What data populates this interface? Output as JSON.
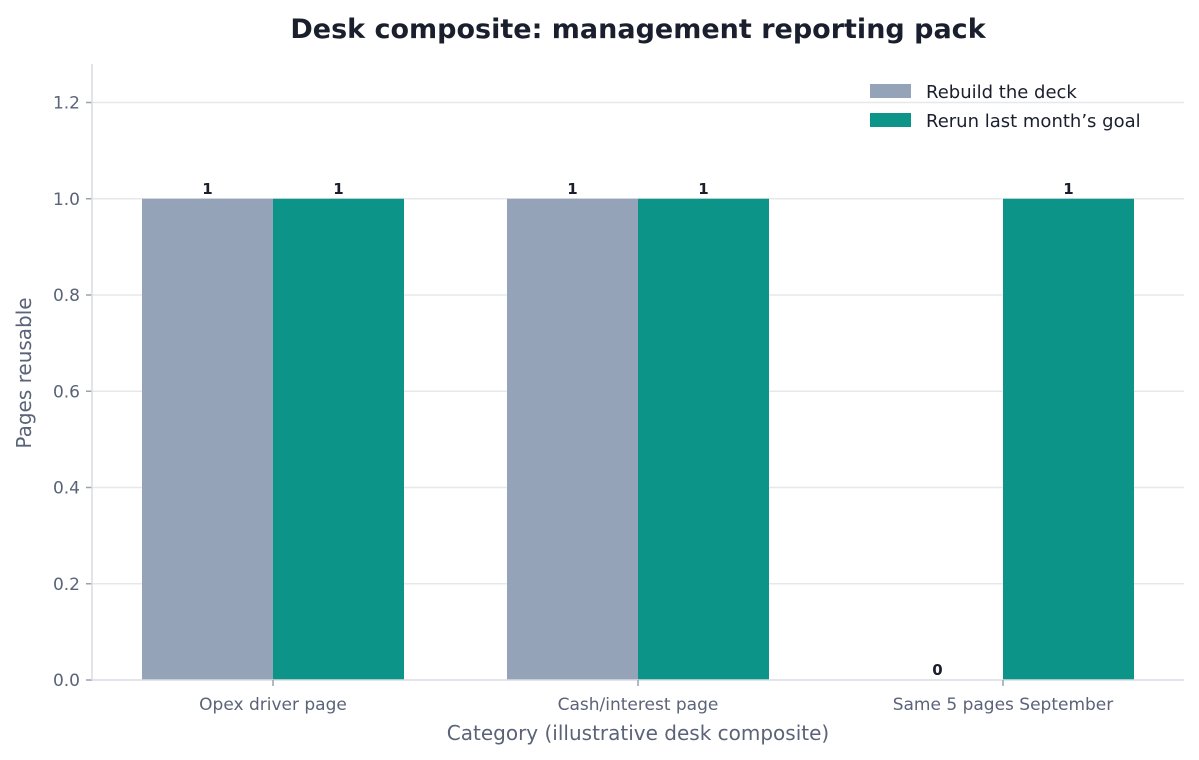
{
  "chart_data": {
    "type": "bar",
    "title": "Desk composite: management reporting pack",
    "xlabel": "Category (illustrative desk composite)",
    "ylabel": "Pages reusable",
    "categories": [
      "Opex driver page",
      "Cash/interest page",
      "Same 5 pages September"
    ],
    "series": [
      {
        "name": "Rebuild the deck",
        "values": [
          1,
          1,
          0
        ],
        "color": "#94a3b8"
      },
      {
        "name": "Rerun last month’s goal",
        "values": [
          1,
          1,
          1
        ],
        "color": "#0d9488"
      }
    ],
    "ylim": [
      0,
      1.28
    ],
    "yticks": [
      0.0,
      0.2,
      0.4,
      0.6,
      0.8,
      1.0,
      1.2
    ],
    "grid": "y",
    "legend": "top-right"
  }
}
